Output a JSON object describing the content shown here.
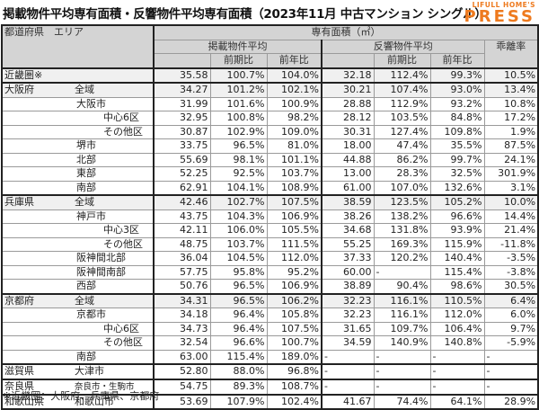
{
  "title": "掲載物件平均専有面積・反響物件平均専有面積（2023年11月 中古マンション シングル）",
  "logo": {
    "top": "LIFULL HOME'S",
    "main": "PRESS",
    "color": "#ee7a1e"
  },
  "header": {
    "col_region": "都道府県　エリア",
    "group": "専有面積（㎡）",
    "listed": "掲載物件平均",
    "response": "反響物件平均",
    "qoq": "前期比",
    "yoy": "前年比",
    "gap": "乖離率"
  },
  "rows": [
    {
      "pref": "近畿圏※",
      "area": "",
      "level": 0,
      "shade": true,
      "l_avg": "35.58",
      "l_qoq": "100.7%",
      "l_yoy": "104.0%",
      "r_avg": "32.18",
      "r_qoq": "112.4%",
      "r_yoy": "99.3%",
      "gap": "10.5%"
    },
    {
      "pref": "大阪府",
      "area": "全域",
      "level": 0,
      "shade": true,
      "l_avg": "34.27",
      "l_qoq": "101.2%",
      "l_yoy": "102.1%",
      "r_avg": "30.21",
      "r_qoq": "107.4%",
      "r_yoy": "93.0%",
      "gap": "13.4%"
    },
    {
      "pref": "",
      "area": "大阪市",
      "level": 1,
      "l_avg": "31.99",
      "l_qoq": "101.6%",
      "l_yoy": "100.9%",
      "r_avg": "28.88",
      "r_qoq": "112.9%",
      "r_yoy": "93.2%",
      "gap": "10.8%"
    },
    {
      "pref": "",
      "area": "中心6区",
      "level": 2,
      "l_avg": "32.95",
      "l_qoq": "100.8%",
      "l_yoy": "98.2%",
      "r_avg": "28.12",
      "r_qoq": "103.5%",
      "r_yoy": "84.8%",
      "gap": "17.2%"
    },
    {
      "pref": "",
      "area": "その他区",
      "level": 2,
      "l_avg": "30.87",
      "l_qoq": "102.9%",
      "l_yoy": "109.0%",
      "r_avg": "30.31",
      "r_qoq": "127.4%",
      "r_yoy": "109.8%",
      "gap": "1.9%"
    },
    {
      "pref": "",
      "area": "堺市",
      "level": 1,
      "l_avg": "33.75",
      "l_qoq": "96.5%",
      "l_yoy": "81.0%",
      "r_avg": "18.00",
      "r_qoq": "47.4%",
      "r_yoy": "35.5%",
      "gap": "87.5%"
    },
    {
      "pref": "",
      "area": "北部",
      "level": 1,
      "l_avg": "55.69",
      "l_qoq": "98.1%",
      "l_yoy": "101.1%",
      "r_avg": "44.88",
      "r_qoq": "86.2%",
      "r_yoy": "99.7%",
      "gap": "24.1%"
    },
    {
      "pref": "",
      "area": "東部",
      "level": 1,
      "l_avg": "52.25",
      "l_qoq": "92.5%",
      "l_yoy": "103.7%",
      "r_avg": "13.00",
      "r_qoq": "28.3%",
      "r_yoy": "32.5%",
      "gap": "301.9%"
    },
    {
      "pref": "",
      "area": "南部",
      "level": 1,
      "l_avg": "62.91",
      "l_qoq": "104.1%",
      "l_yoy": "108.9%",
      "r_avg": "61.00",
      "r_qoq": "107.0%",
      "r_yoy": "132.6%",
      "gap": "3.1%"
    },
    {
      "pref": "兵庫県",
      "area": "全域",
      "level": 0,
      "shade": true,
      "l_avg": "42.46",
      "l_qoq": "102.7%",
      "l_yoy": "107.5%",
      "r_avg": "38.59",
      "r_qoq": "123.5%",
      "r_yoy": "105.2%",
      "gap": "10.0%"
    },
    {
      "pref": "",
      "area": "神戸市",
      "level": 1,
      "l_avg": "43.75",
      "l_qoq": "104.3%",
      "l_yoy": "106.9%",
      "r_avg": "38.26",
      "r_qoq": "138.2%",
      "r_yoy": "96.6%",
      "gap": "14.4%"
    },
    {
      "pref": "",
      "area": "中心3区",
      "level": 2,
      "l_avg": "42.11",
      "l_qoq": "106.0%",
      "l_yoy": "105.5%",
      "r_avg": "34.68",
      "r_qoq": "131.8%",
      "r_yoy": "93.9%",
      "gap": "21.4%"
    },
    {
      "pref": "",
      "area": "その他区",
      "level": 2,
      "l_avg": "48.75",
      "l_qoq": "103.7%",
      "l_yoy": "111.5%",
      "r_avg": "55.25",
      "r_qoq": "169.3%",
      "r_yoy": "115.9%",
      "gap": "-11.8%"
    },
    {
      "pref": "",
      "area": "阪神間北部",
      "level": 1,
      "l_avg": "36.04",
      "l_qoq": "104.5%",
      "l_yoy": "112.0%",
      "r_avg": "37.33",
      "r_qoq": "120.2%",
      "r_yoy": "140.4%",
      "gap": "-3.5%"
    },
    {
      "pref": "",
      "area": "阪神間南部",
      "level": 1,
      "l_avg": "57.75",
      "l_qoq": "95.8%",
      "l_yoy": "95.2%",
      "r_avg": "60.00",
      "r_qoq": "-",
      "r_yoy": "115.4%",
      "gap": "-3.8%"
    },
    {
      "pref": "",
      "area": "西部",
      "level": 1,
      "l_avg": "50.76",
      "l_qoq": "96.5%",
      "l_yoy": "106.9%",
      "r_avg": "38.89",
      "r_qoq": "90.4%",
      "r_yoy": "98.6%",
      "gap": "30.5%"
    },
    {
      "pref": "京都府",
      "area": "全域",
      "level": 0,
      "shade": true,
      "l_avg": "34.31",
      "l_qoq": "96.5%",
      "l_yoy": "106.2%",
      "r_avg": "32.23",
      "r_qoq": "116.1%",
      "r_yoy": "110.5%",
      "gap": "6.4%"
    },
    {
      "pref": "",
      "area": "京都市",
      "level": 1,
      "l_avg": "34.18",
      "l_qoq": "96.4%",
      "l_yoy": "105.8%",
      "r_avg": "32.23",
      "r_qoq": "116.1%",
      "r_yoy": "112.0%",
      "gap": "6.0%"
    },
    {
      "pref": "",
      "area": "中心6区",
      "level": 2,
      "l_avg": "34.73",
      "l_qoq": "96.4%",
      "l_yoy": "107.5%",
      "r_avg": "31.65",
      "r_qoq": "109.7%",
      "r_yoy": "106.4%",
      "gap": "9.7%"
    },
    {
      "pref": "",
      "area": "その他区",
      "level": 2,
      "l_avg": "32.54",
      "l_qoq": "96.6%",
      "l_yoy": "100.7%",
      "r_avg": "34.59",
      "r_qoq": "140.9%",
      "r_yoy": "140.8%",
      "gap": "-5.9%"
    },
    {
      "pref": "",
      "area": "南部",
      "level": 1,
      "l_avg": "63.00",
      "l_qoq": "115.4%",
      "l_yoy": "189.0%",
      "r_avg": "-",
      "r_qoq": "-",
      "r_yoy": "-",
      "gap": "-"
    },
    {
      "pref": "滋賀県",
      "area": "大津市",
      "level": 0,
      "sep": true,
      "l_avg": "52.80",
      "l_qoq": "88.0%",
      "l_yoy": "96.8%",
      "r_avg": "-",
      "r_qoq": "-",
      "r_yoy": "-",
      "gap": "-"
    },
    {
      "pref": "奈良県",
      "area": "奈良市・生駒市",
      "level": 0,
      "sep": true,
      "tiny": true,
      "l_avg": "54.75",
      "l_qoq": "89.3%",
      "l_yoy": "108.7%",
      "r_avg": "-",
      "r_qoq": "-",
      "r_yoy": "-",
      "gap": "-"
    },
    {
      "pref": "和歌山県",
      "area": "和歌山市",
      "level": 0,
      "sep": true,
      "last": true,
      "l_avg": "53.69",
      "l_qoq": "107.9%",
      "l_yoy": "102.4%",
      "r_avg": "41.67",
      "r_qoq": "74.4%",
      "r_yoy": "64.1%",
      "gap": "28.9%"
    }
  ],
  "footnote": "※近畿圏：大阪府、兵庫県、京都府"
}
